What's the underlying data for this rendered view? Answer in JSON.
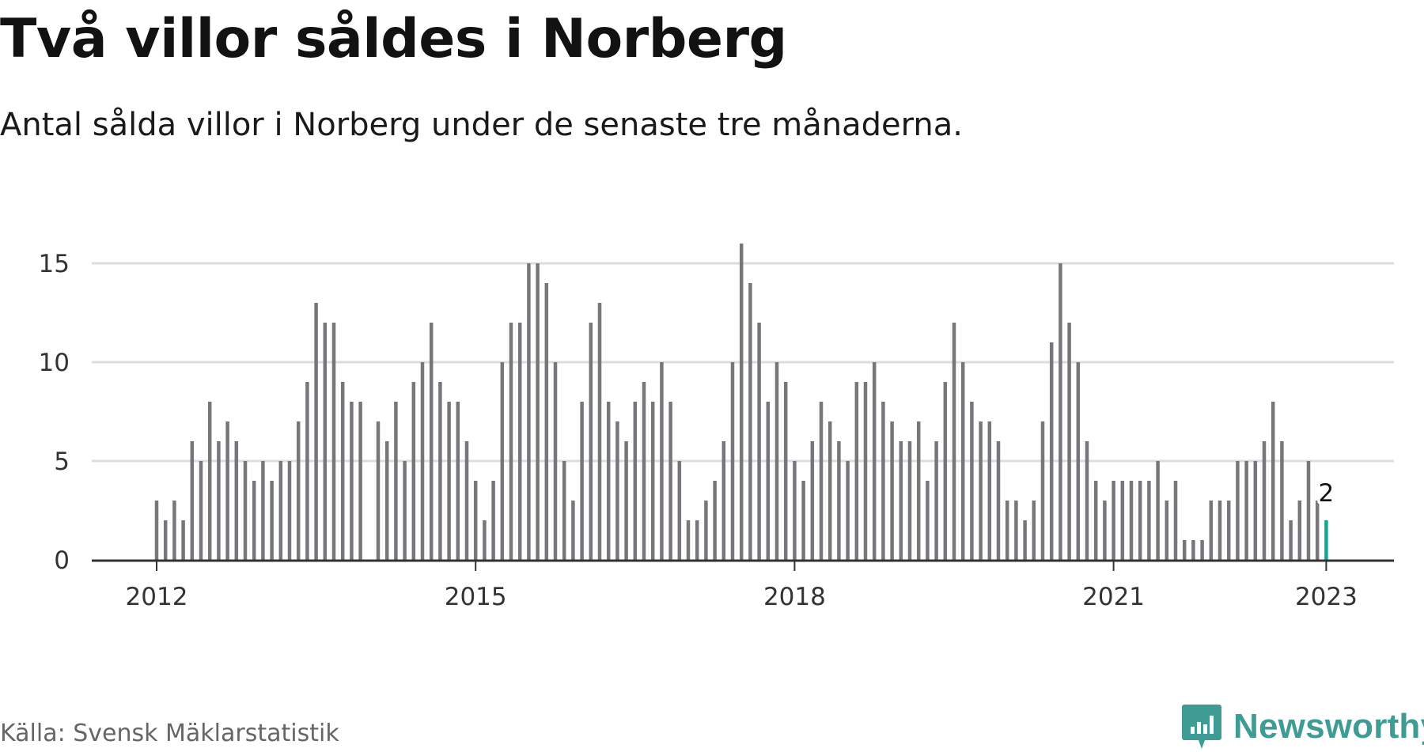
{
  "title": "Två villor såldes i Norberg",
  "subtitle": "Antal sålda villor i Norberg under de senaste tre månaderna.",
  "source": "Källa: Svensk Mäklarstatistik",
  "brand": {
    "name": "Newsworthy",
    "icon": "newsworthy-logo-icon",
    "color": "#3f9b93"
  },
  "colors": {
    "bar": "#77777b",
    "highlight": "#19a192",
    "grid": "#dddddd",
    "axis": "#333333"
  },
  "chart_data": {
    "type": "bar",
    "x_start": "2012-01",
    "frequency": "monthly",
    "values": [
      3,
      2,
      3,
      2,
      6,
      5,
      8,
      6,
      7,
      6,
      5,
      4,
      5,
      4,
      5,
      5,
      7,
      9,
      13,
      12,
      12,
      9,
      8,
      8,
      0,
      7,
      6,
      8,
      5,
      9,
      10,
      12,
      9,
      8,
      8,
      6,
      4,
      2,
      4,
      10,
      12,
      12,
      15,
      15,
      14,
      10,
      5,
      3,
      8,
      12,
      13,
      8,
      7,
      6,
      8,
      9,
      8,
      10,
      8,
      5,
      2,
      2,
      3,
      4,
      6,
      10,
      16,
      14,
      12,
      8,
      10,
      9,
      5,
      4,
      6,
      8,
      7,
      6,
      5,
      9,
      9,
      10,
      8,
      7,
      6,
      6,
      7,
      4,
      6,
      9,
      12,
      10,
      8,
      7,
      7,
      6,
      3,
      3,
      2,
      3,
      7,
      11,
      15,
      12,
      10,
      6,
      4,
      3,
      4,
      4,
      4,
      4,
      4,
      5,
      3,
      4,
      1,
      1,
      1,
      3,
      3,
      3,
      5,
      5,
      5,
      6,
      8,
      6,
      2,
      3,
      5,
      3,
      2
    ],
    "highlight_index": 132,
    "highlight_label": "2",
    "x_ticks": [
      "2012",
      "2015",
      "2018",
      "2021",
      "2023"
    ],
    "x_tick_indices": [
      0,
      36,
      72,
      108,
      132
    ],
    "y_ticks": [
      0,
      5,
      10,
      15
    ],
    "ylim": [
      0,
      16
    ],
    "grid": true,
    "title": "Två villor såldes i Norberg",
    "xlabel": "",
    "ylabel": ""
  }
}
